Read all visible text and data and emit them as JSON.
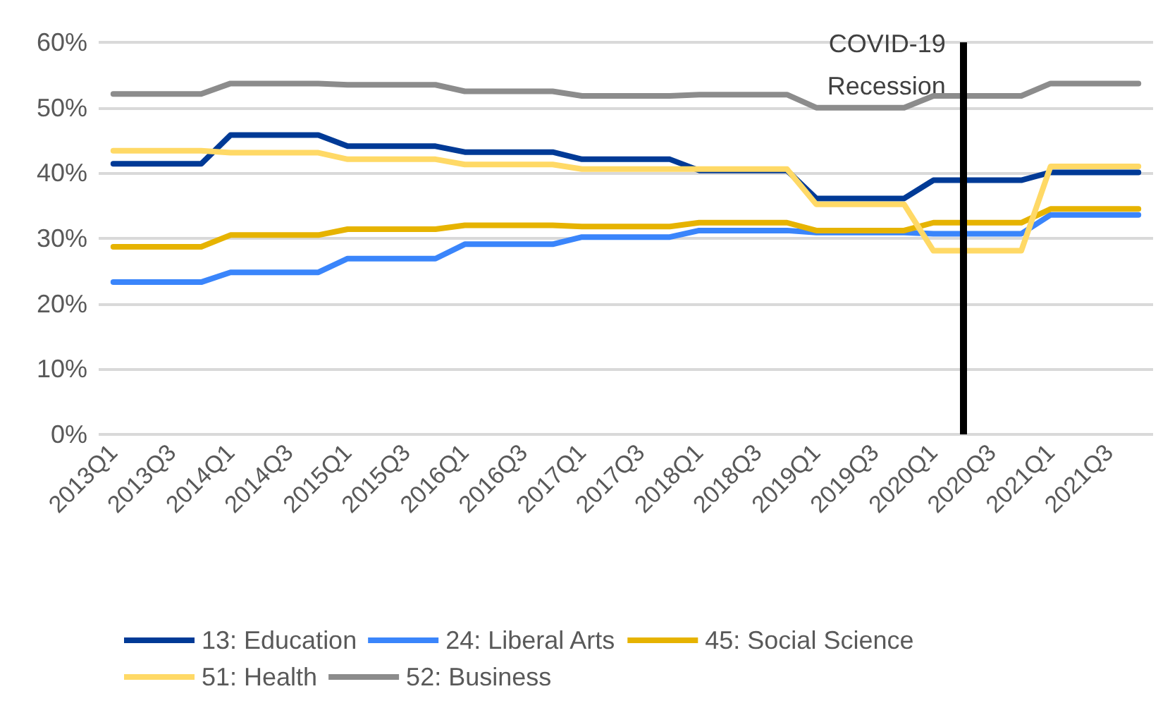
{
  "chart_data": {
    "type": "line",
    "categories": [
      "2013Q1",
      null,
      "2013Q3",
      null,
      "2014Q1",
      null,
      "2014Q3",
      null,
      "2015Q1",
      null,
      "2015Q3",
      null,
      "2016Q1",
      null,
      "2016Q3",
      null,
      "2017Q1",
      null,
      "2017Q3",
      null,
      "2018Q1",
      null,
      "2018Q3",
      null,
      "2019Q1",
      null,
      "2019Q3",
      null,
      "2020Q1",
      null,
      "2020Q3",
      null,
      "2021Q1",
      null,
      "2021Q3",
      null
    ],
    "series": [
      {
        "name": "13: Education",
        "color": "#003a96",
        "values": [
          41.4,
          41.4,
          41.4,
          41.4,
          45.8,
          45.8,
          45.8,
          45.8,
          44.1,
          44.1,
          44.1,
          44.1,
          43.2,
          43.2,
          43.2,
          43.2,
          42.1,
          42.1,
          42.1,
          42.1,
          40.4,
          40.4,
          40.4,
          40.4,
          36.1,
          36.1,
          36.1,
          36.1,
          38.9,
          38.9,
          38.9,
          38.9,
          40.1,
          40.1,
          40.1,
          40.1
        ]
      },
      {
        "name": "24: Liberal Arts",
        "color": "#3a85fb",
        "values": [
          23.3,
          23.3,
          23.3,
          23.3,
          24.8,
          24.8,
          24.8,
          24.8,
          26.9,
          26.9,
          26.9,
          26.9,
          29.1,
          29.1,
          29.1,
          29.1,
          30.2,
          30.2,
          30.2,
          30.2,
          31.2,
          31.2,
          31.2,
          31.2,
          30.9,
          30.9,
          30.9,
          30.9,
          30.7,
          30.7,
          30.7,
          30.7,
          33.6,
          33.6,
          33.6,
          33.6
        ]
      },
      {
        "name": "45: Social Science",
        "color": "#e6b300",
        "values": [
          28.7,
          28.7,
          28.7,
          28.7,
          30.5,
          30.5,
          30.5,
          30.5,
          31.4,
          31.4,
          31.4,
          31.4,
          32.0,
          32.0,
          32.0,
          32.0,
          31.8,
          31.8,
          31.8,
          31.8,
          32.4,
          32.4,
          32.4,
          32.4,
          31.2,
          31.2,
          31.2,
          31.2,
          32.4,
          32.4,
          32.4,
          32.4,
          34.5,
          34.5,
          34.5,
          34.5
        ]
      },
      {
        "name": "51: Health",
        "color": "#ffd966",
        "values": [
          43.4,
          43.4,
          43.4,
          43.4,
          43.1,
          43.1,
          43.1,
          43.1,
          42.1,
          42.1,
          42.1,
          42.1,
          41.3,
          41.3,
          41.3,
          41.3,
          40.6,
          40.6,
          40.6,
          40.6,
          40.6,
          40.6,
          40.6,
          40.6,
          35.2,
          35.2,
          35.2,
          35.2,
          28.1,
          28.1,
          28.1,
          28.1,
          41.0,
          41.0,
          41.0,
          41.0
        ]
      },
      {
        "name": "52: Business",
        "color": "#8c8c8c",
        "values": [
          52.1,
          52.1,
          52.1,
          52.1,
          53.7,
          53.7,
          53.7,
          53.7,
          53.5,
          53.5,
          53.5,
          53.5,
          52.5,
          52.5,
          52.5,
          52.5,
          51.8,
          51.8,
          51.8,
          51.8,
          52.0,
          52.0,
          52.0,
          52.0,
          50.0,
          50.0,
          50.0,
          50.0,
          51.8,
          51.8,
          51.8,
          51.8,
          53.7,
          53.7,
          53.7,
          53.7
        ]
      }
    ],
    "ylim": [
      0,
      60
    ],
    "yticks": [
      {
        "value": 0,
        "label": "0%"
      },
      {
        "value": 10,
        "label": "10%"
      },
      {
        "value": 20,
        "label": "20%"
      },
      {
        "value": 30,
        "label": "30%"
      },
      {
        "value": 40,
        "label": "40%"
      },
      {
        "value": 50,
        "label": "50%"
      },
      {
        "value": 60,
        "label": "60%"
      }
    ],
    "annotations": [
      "COVID-19\nRecession"
    ],
    "grid": "y",
    "legend": "bottom",
    "marker": "none",
    "line_style": "solid"
  }
}
